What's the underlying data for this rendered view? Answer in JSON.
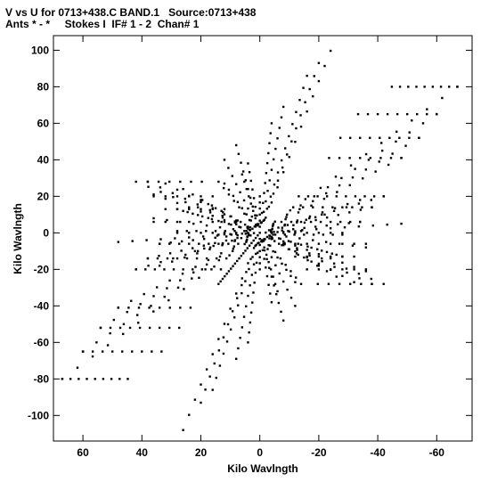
{
  "header": {
    "line1": "V vs U for 0713+438.C BAND.1   Source:0713+438",
    "line2": "Ants * - *     Stokes I  IF# 1 - 2  Chan# 1"
  },
  "chart_data": {
    "type": "scatter",
    "title": "V vs U for 0713+438.C BAND.1   Source:0713+438",
    "subtitle": "Ants * - *     Stokes I  IF# 1 - 2  Chan# 1",
    "xlabel": "Kilo Wavlngth",
    "ylabel": "Kilo Wavlngth",
    "xlim": [
      70,
      -72
    ],
    "ylim": [
      -114,
      108
    ],
    "x_ticks": [
      60,
      40,
      20,
      0,
      -20,
      -40,
      -60
    ],
    "x_tick_labels": [
      "60",
      "40",
      "20",
      "0",
      "-20",
      "-40",
      "-60"
    ],
    "y_ticks": [
      100,
      80,
      60,
      40,
      20,
      0,
      -20,
      -40,
      -60,
      -80,
      -100
    ],
    "y_tick_labels": [
      "100",
      "80",
      "60",
      "40",
      "20",
      "0",
      "-20",
      "-40",
      "-60",
      "-80",
      "-100"
    ],
    "grid": false,
    "marker_color": "#000000",
    "x_axis_reversed": true,
    "pattern": {
      "description_values": "UV-coverage tracks; each track is a radial spoke from (0,0) to an end point, sampled at N points, mirrored through the origin",
      "spokes": [
        {
          "end": [
            -26,
            108
          ],
          "n": 13
        },
        {
          "end": [
            -20,
            93
          ],
          "n": 13
        },
        {
          "end": [
            -16,
            86
          ],
          "n": 13
        },
        {
          "end": [
            -8,
            69
          ],
          "n": 12
        },
        {
          "end": [
            -4,
            60
          ],
          "n": 11
        },
        {
          "end": [
            -67,
            80
          ],
          "n": 13
        },
        {
          "end": [
            -60,
            65
          ],
          "n": 13
        },
        {
          "end": [
            -54,
            52
          ],
          "n": 12
        },
        {
          "end": [
            -48,
            41
          ],
          "n": 11
        },
        {
          "end": [
            -42,
            20
          ],
          "n": 10
        },
        {
          "end": [
            -38,
            14
          ],
          "n": 10
        },
        {
          "end": [
            -34,
            6
          ],
          "n": 9
        },
        {
          "end": [
            -48,
            5
          ],
          "n": 10
        },
        {
          "end": [
            -42,
            -28
          ],
          "n": 10
        },
        {
          "end": [
            -36,
            -21
          ],
          "n": 9
        },
        {
          "end": [
            -26,
            -12
          ],
          "n": 8
        },
        {
          "end": [
            38,
            28
          ],
          "n": 9
        },
        {
          "end": [
            32,
            27
          ],
          "n": 8
        },
        {
          "end": [
            26,
            24
          ],
          "n": 8
        },
        {
          "end": [
            8,
            48
          ],
          "n": 10
        },
        {
          "end": [
            12,
            40
          ],
          "n": 9
        },
        {
          "end": [
            4,
            38
          ],
          "n": 8
        },
        {
          "end": [
            34,
            -18
          ],
          "n": 8
        },
        {
          "end": [
            22,
            -10
          ],
          "n": 7
        },
        {
          "end": [
            28,
            13
          ],
          "n": 8
        },
        {
          "end": [
            36,
            8
          ],
          "n": 8
        },
        {
          "end": [
            14,
            28
          ],
          "n": 8
        },
        {
          "end": [
            0,
            20
          ],
          "n": 6
        },
        {
          "end": [
            -14,
            1
          ],
          "n": 7
        },
        {
          "end": [
            -12,
            -27
          ],
          "n": 8
        },
        {
          "end": [
            -20,
            -18
          ],
          "n": 8
        },
        {
          "end": [
            -6,
            -32
          ],
          "n": 8
        }
      ],
      "shelves": [
        {
          "start": [
            -42,
            80
          ],
          "end": [
            -67,
            80
          ],
          "n": 9
        },
        {
          "start": [
            -30,
            65
          ],
          "end": [
            -60,
            65
          ],
          "n": 9
        },
        {
          "start": [
            -24,
            52
          ],
          "end": [
            -54,
            52
          ],
          "n": 9
        },
        {
          "start": [
            -20,
            41
          ],
          "end": [
            -48,
            41
          ],
          "n": 8
        },
        {
          "start": [
            -10,
            20
          ],
          "end": [
            -42,
            20
          ],
          "n": 10
        },
        {
          "start": [
            -8,
            14
          ],
          "end": [
            -38,
            14
          ],
          "n": 9
        },
        {
          "start": [
            -4,
            6
          ],
          "end": [
            -34,
            6
          ],
          "n": 9
        },
        {
          "start": [
            -2,
            -1
          ],
          "end": [
            -28,
            -1
          ],
          "n": 8
        },
        {
          "start": [
            16,
            28
          ],
          "end": [
            38,
            28
          ],
          "n": 6
        },
        {
          "start": [
            12,
            20
          ],
          "end": [
            36,
            20
          ],
          "n": 6
        },
        {
          "start": [
            8,
            13
          ],
          "end": [
            32,
            13
          ],
          "n": 6
        },
        {
          "start": [
            4,
            6
          ],
          "end": [
            36,
            6
          ],
          "n": 8
        },
        {
          "start": [
            0,
            0
          ],
          "end": [
            28,
            0
          ],
          "n": 7
        }
      ]
    }
  }
}
